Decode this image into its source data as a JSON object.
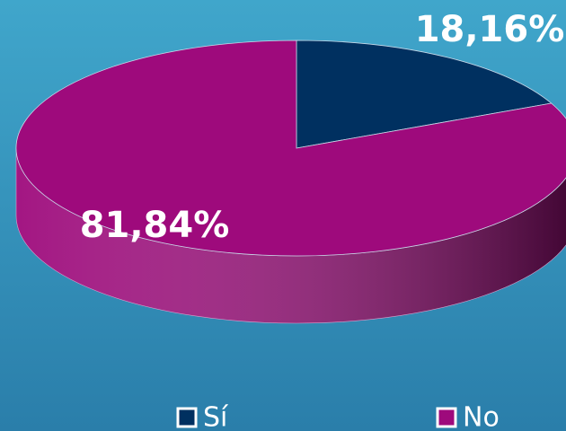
{
  "chart_data": {
    "type": "pie",
    "categories": [
      "Sí",
      "No"
    ],
    "values": [
      18.16,
      81.84
    ],
    "value_labels": [
      "18,16%",
      "81,84%"
    ],
    "colors": [
      "#003060",
      "#9e0a7c"
    ],
    "legend": "bottom"
  }
}
